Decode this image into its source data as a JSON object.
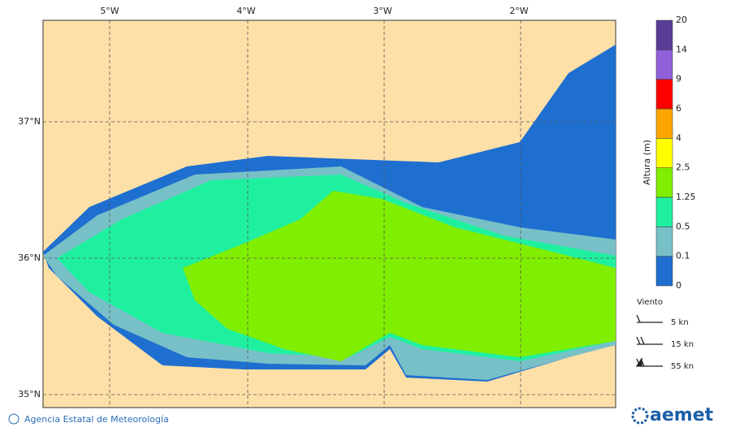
{
  "map": {
    "lon_labels": [
      "5°W",
      "4°W",
      "3°W",
      "2°W"
    ],
    "lat_labels": [
      "37°N",
      "36°N",
      "35°N"
    ],
    "colorbar": {
      "title": "Altura (m)",
      "ticks": [
        0,
        0.1,
        0.5,
        1.25,
        2.5,
        4,
        6,
        9,
        14,
        20
      ],
      "colors": [
        "#1e6fd0",
        "#78c0c8",
        "#1ff0a0",
        "#80ee00",
        "#ffff00",
        "#ffa500",
        "#ff0000",
        "#9060d8",
        "#5a3c96"
      ]
    },
    "wind_legend": {
      "title": "Viento",
      "items": [
        "5 kn",
        "15 kn",
        "55 kn"
      ]
    }
  },
  "footer": {
    "credit": "Agencia Estatal de Meteorología",
    "logo": "aemet"
  }
}
